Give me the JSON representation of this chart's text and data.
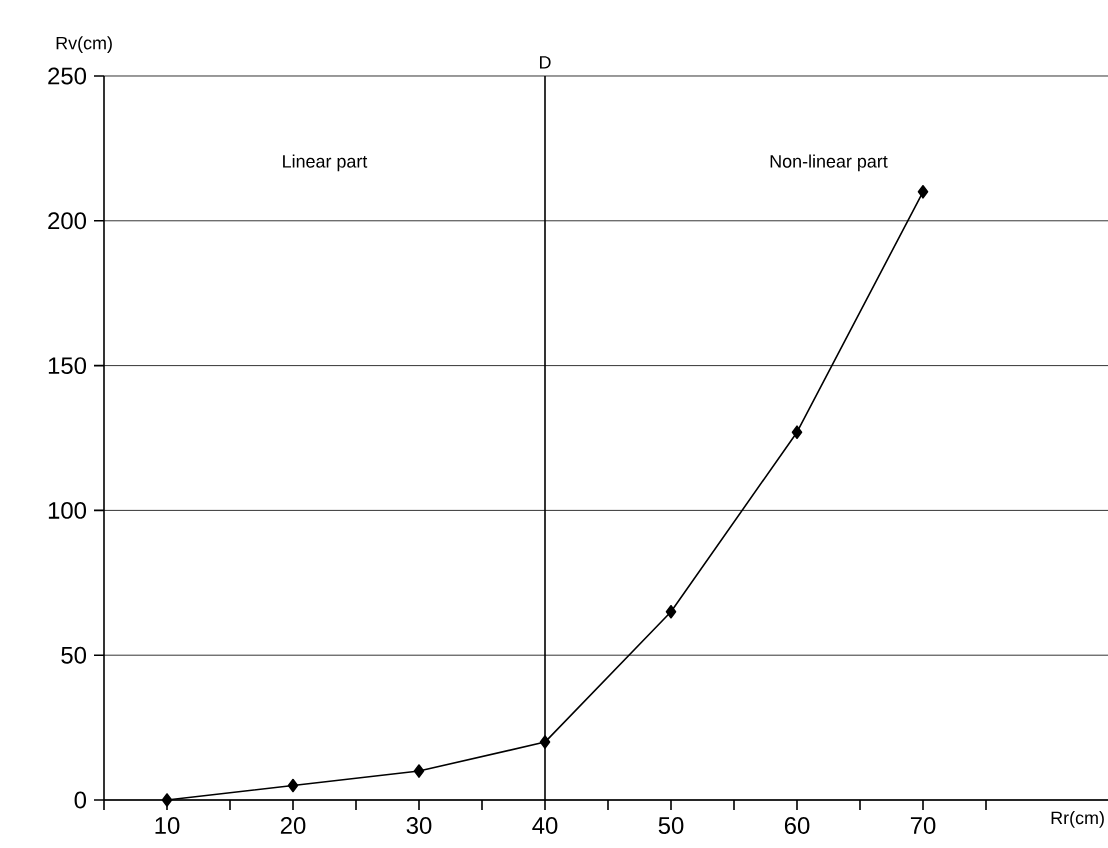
{
  "chart_data": {
    "type": "line",
    "x": [
      10,
      20,
      30,
      40,
      50,
      60,
      70
    ],
    "series": [
      {
        "color": "#000000",
        "values": [
          0,
          5,
          10,
          20,
          65,
          127,
          210
        ]
      }
    ],
    "xlabel": "Rr(cm)",
    "ylabel": "Rv(cm)",
    "xlim": [
      5,
      85
    ],
    "ylim": [
      0,
      250
    ],
    "xticks": [
      {
        "value": 5,
        "label": null
      },
      10,
      {
        "value": 15,
        "label": null
      },
      20,
      {
        "value": 25,
        "label": null
      },
      30,
      {
        "value": 35,
        "label": null
      },
      40,
      {
        "value": 45,
        "label": null
      },
      50,
      {
        "value": 55,
        "label": null
      },
      60,
      {
        "value": 65,
        "label": null
      },
      70,
      {
        "value": 75,
        "label": null
      }
    ],
    "yticks": [
      0,
      50,
      100,
      150,
      200,
      250
    ],
    "grid": "y",
    "marker": "diamond",
    "line_style": "solid",
    "ref_lines": [
      {
        "axis": "x",
        "value": 40,
        "label": "D",
        "color": "#000000"
      }
    ],
    "annotations": [
      "Linear part",
      "Non-linear part"
    ]
  }
}
